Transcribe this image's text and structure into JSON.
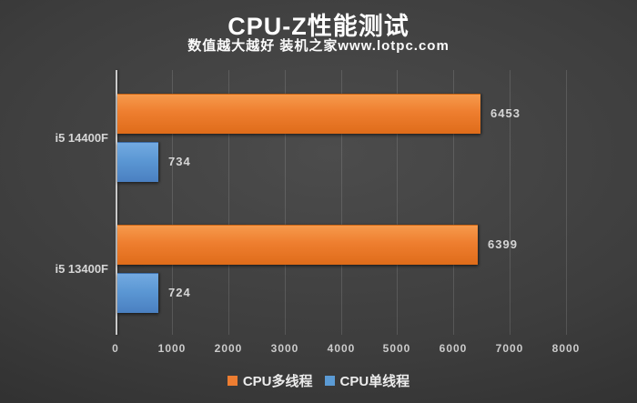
{
  "chart_data": {
    "type": "bar",
    "orientation": "horizontal",
    "title": "CPU-Z性能测试",
    "subtitle": "数值越大越好 装机之家www.lotpc.com",
    "categories": [
      "i5 14400F",
      "i5 13400F"
    ],
    "series": [
      {
        "name": "CPU多线程",
        "color": "#ED7D31",
        "values": [
          6453,
          6399
        ]
      },
      {
        "name": "CPU单线程",
        "color": "#5B9BD5",
        "values": [
          734,
          724
        ]
      }
    ],
    "xlim": [
      0,
      8000
    ],
    "xticks": [
      "0",
      "1000",
      "2000",
      "3000",
      "4000",
      "5000",
      "6000",
      "7000",
      "8000"
    ],
    "grid": "vertical",
    "legend_position": "bottom",
    "value_labels_shown": true,
    "background_color": "#3d3d3d",
    "text_color": "#d6d6d6",
    "axis_line_color": "#c9c9c9"
  }
}
